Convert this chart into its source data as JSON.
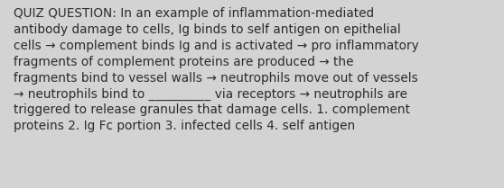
{
  "lines": [
    "QUIZ QUESTION: In an example of inflammation-mediated",
    "antibody damage to cells, Ig binds to self antigen on epithelial",
    "cells → complement binds Ig and is activated → pro inflammatory",
    "fragments of complement proteins are produced → the",
    "fragments bind to vessel walls → neutrophils move out of vessels",
    "→ neutrophils bind to __________ via receptors → neutrophils are",
    "triggered to release granules that damage cells. 1. complement",
    "proteins 2. Ig Fc portion 3. infected cells 4. self antigen"
  ],
  "background_color": "#d3d3d3",
  "text_color": "#2b2b2b",
  "font_size": 9.8,
  "fig_width": 5.58,
  "fig_height": 2.09,
  "dpi": 100
}
